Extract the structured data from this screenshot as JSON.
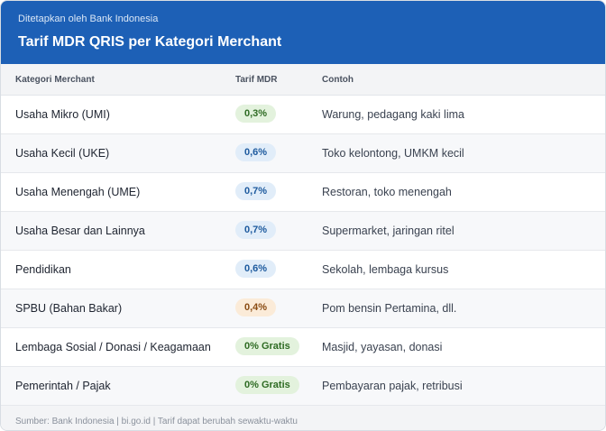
{
  "header": {
    "subtitle": "Ditetapkan oleh Bank Indonesia",
    "title": "Tarif MDR QRIS per Kategori Merchant",
    "background_color": "#1d60b6"
  },
  "table": {
    "columns": [
      "Kategori Merchant",
      "Tarif MDR",
      "Contoh"
    ],
    "rows": [
      {
        "category": "Usaha Mikro (UMI)",
        "rate": "0,3%",
        "rate_color": "green",
        "example": "Warung, pedagang kaki lima"
      },
      {
        "category": "Usaha Kecil (UKE)",
        "rate": "0,6%",
        "rate_color": "blue",
        "example": "Toko kelontong, UMKM kecil"
      },
      {
        "category": "Usaha Menengah (UME)",
        "rate": "0,7%",
        "rate_color": "blue",
        "example": "Restoran, toko menengah"
      },
      {
        "category": "Usaha Besar dan Lainnya",
        "rate": "0,7%",
        "rate_color": "blue",
        "example": "Supermarket, jaringan ritel"
      },
      {
        "category": "Pendidikan",
        "rate": "0,6%",
        "rate_color": "blue",
        "example": "Sekolah, lembaga kursus"
      },
      {
        "category": "SPBU (Bahan Bakar)",
        "rate": "0,4%",
        "rate_color": "orange",
        "example": "Pom bensin Pertamina, dll."
      },
      {
        "category": "Lembaga Sosial / Donasi / Keagamaan",
        "rate": "0% Gratis",
        "rate_color": "green",
        "example": "Masjid, yayasan, donasi"
      },
      {
        "category": "Pemerintah / Pajak",
        "rate": "0% Gratis",
        "rate_color": "green",
        "example": "Pembayaran pajak, retribusi"
      }
    ]
  },
  "footer": {
    "text": "Sumber: Bank Indonesia  |  bi.go.id  |  Tarif dapat berubah sewaktu-waktu"
  }
}
